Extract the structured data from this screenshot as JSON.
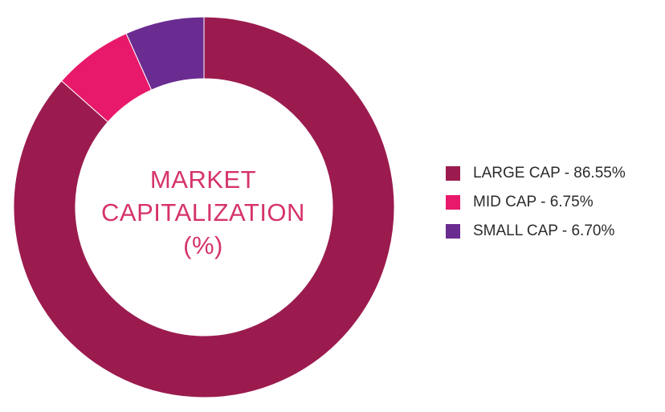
{
  "chart_data": {
    "type": "pie",
    "title_lines": [
      "MARKET",
      "CAPITALIZATION",
      "(%)"
    ],
    "slices": [
      {
        "label": "LARGE CAP - 86.55%",
        "value": 86.55,
        "color": "#9b1b4f"
      },
      {
        "label": "MID CAP - 6.75%",
        "value": 6.75,
        "color": "#e8196a"
      },
      {
        "label": "SMALL CAP - 6.70%",
        "value": 6.7,
        "color": "#6a2c91"
      }
    ],
    "legend_position": "right"
  }
}
